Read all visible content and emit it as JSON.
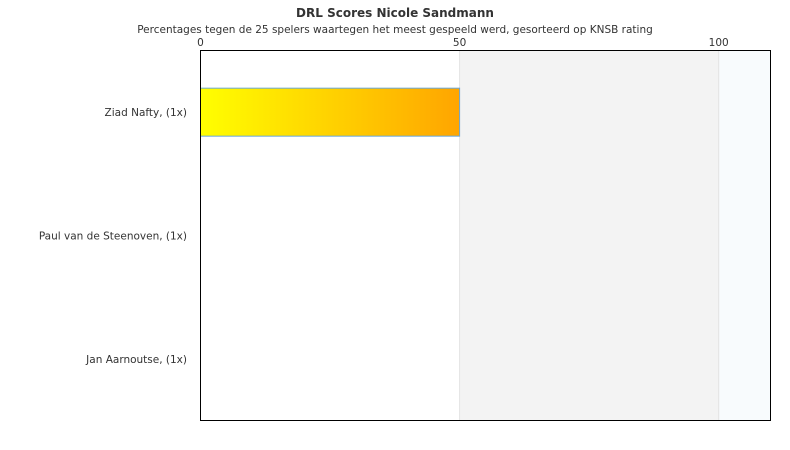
{
  "chart_data": {
    "type": "bar",
    "orientation": "horizontal",
    "title": "DRL Scores Nicole Sandmann",
    "subtitle": "Percentages tegen de 25 spelers waartegen het meest gespeeld werd, gesorteerd op KNSB rating",
    "categories": [
      "Ziad Nafty,  (1x)",
      "Paul van de Steenoven,  (1x)",
      "Jan Aarnoutse,  (1x)"
    ],
    "values": [
      50,
      0,
      0
    ],
    "xlim": [
      0,
      110
    ],
    "xticks": [
      0,
      50,
      100
    ],
    "tick_position": "top",
    "bands": [
      {
        "from": 0,
        "to": 50,
        "color": "#ffffff"
      },
      {
        "from": 50,
        "to": 100,
        "color": "#f3f3f3"
      },
      {
        "from": 100,
        "to": 110,
        "color": "#f8fbfd"
      }
    ],
    "bar_gradient": [
      "#ffff00",
      "#ffa500"
    ],
    "bar_border": "#6aa7d8",
    "grid": false,
    "legend": "none"
  }
}
